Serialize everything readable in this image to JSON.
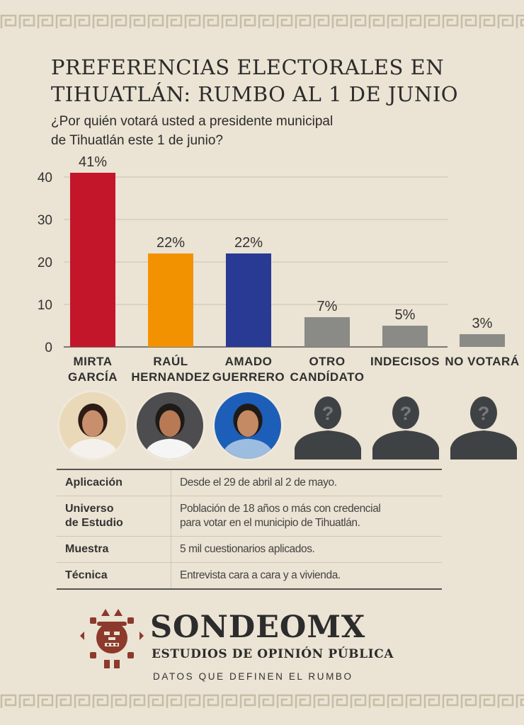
{
  "title_lines": [
    "PREFERENCIAS ELECTORALES EN",
    "TIHUATLÁN: RUMBO AL 1 DE JUNIO"
  ],
  "question_lines": [
    "¿Por quién votará usted a presidente municipal",
    "de Tihuatlán este 1 de junio?"
  ],
  "colors": {
    "background": "#ebe3d3",
    "accent": "#8b3a2b",
    "gray_bar": "#8a8a86",
    "silhouette": "#3f4245"
  },
  "chart_data": {
    "type": "bar",
    "categories": [
      [
        "MIRTA",
        "GARCÍA"
      ],
      [
        "RAÚL",
        "HERNANDEZ"
      ],
      [
        "AMADO",
        "GUERRERO"
      ],
      [
        "OTRO",
        "CANDÍDATO"
      ],
      [
        "INDECISOS"
      ],
      [
        "NO VOTARÁ"
      ]
    ],
    "values": [
      41,
      22,
      22,
      7,
      5,
      3
    ],
    "value_labels": [
      "41%",
      "22%",
      "22%",
      "7%",
      "5%",
      "3%"
    ],
    "bar_colors": [
      "#c4162a",
      "#f39200",
      "#283a93",
      "#8a8a86",
      "#8a8a86",
      "#8a8a86"
    ],
    "yticks": [
      0,
      10,
      20,
      30,
      40
    ],
    "ylim": [
      0,
      42
    ],
    "grid": true
  },
  "candidates": [
    {
      "kind": "photo",
      "name": "mirta-garcia",
      "bg": "#e9d9b9",
      "skin": "#c98f6c",
      "hair": "#2d1c16",
      "shirt": "#f4f1ec"
    },
    {
      "kind": "photo",
      "name": "raul-hernandez",
      "bg": "#4d4d4f",
      "skin": "#b77a55",
      "hair": "#1e1a18",
      "shirt": "#f5f5f5"
    },
    {
      "kind": "photo",
      "name": "amado-guerrero",
      "bg": "#1d5fb8",
      "skin": "#c48a63",
      "hair": "#201a17",
      "shirt": "#9cbce0"
    },
    {
      "kind": "unknown"
    },
    {
      "kind": "unknown"
    },
    {
      "kind": "unknown"
    }
  ],
  "methodology": [
    {
      "label_lines": [
        "Aplicación"
      ],
      "value_lines": [
        "Desde el 29 de abril al 2 de mayo."
      ]
    },
    {
      "label_lines": [
        "Universo",
        "de Estudio"
      ],
      "value_lines": [
        "Población de 18 años o más con credencial",
        "para votar en el municipio de Tihuatlán."
      ]
    },
    {
      "label_lines": [
        "Muestra"
      ],
      "value_lines": [
        "5 mil cuestionarios aplicados."
      ]
    },
    {
      "label_lines": [
        "Técnica"
      ],
      "value_lines": [
        "Entrevista cara a cara y  a vivienda."
      ]
    }
  ],
  "brand": {
    "name": "SONDEOMX",
    "subtitle": "ESTUDIOS DE OPINIÓN PÚBLICA",
    "tagline": "DATOS QUE DEFINEN EL RUMBO"
  }
}
